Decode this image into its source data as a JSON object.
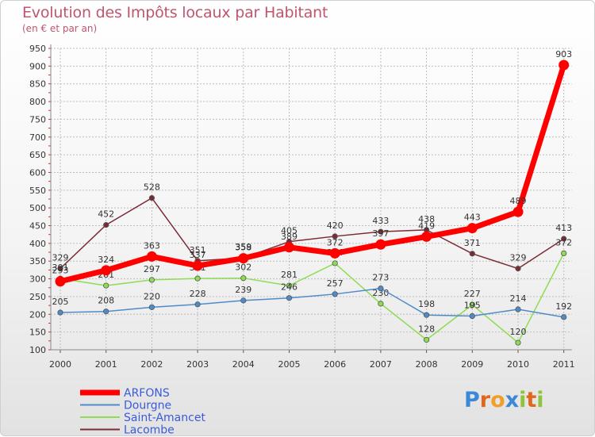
{
  "title": "Evolution des Impôts locaux par Habitant",
  "subtitle": "(en € et par an)",
  "logo": "Proxiti",
  "colors": {
    "ARFONS": "#ff0000",
    "Dourgne": "#4f8bc9",
    "Saint-Amancet": "#8ddc52",
    "Lacombe": "#7a2b36",
    "title": "#c0556f",
    "grid": "#bdbdbd"
  },
  "chart_data": {
    "type": "line",
    "title": "Evolution des Impôts locaux par Habitant",
    "subtitle": "(en € et par an)",
    "xlabel": "",
    "ylabel": "",
    "ylim": [
      100,
      950
    ],
    "yticks": [
      100,
      150,
      200,
      250,
      300,
      350,
      400,
      450,
      500,
      550,
      600,
      650,
      700,
      750,
      800,
      850,
      900,
      950
    ],
    "categories": [
      "2000",
      "2001",
      "2002",
      "2003",
      "2004",
      "2005",
      "2006",
      "2007",
      "2008",
      "2009",
      "2010",
      "2011"
    ],
    "grid": true,
    "legend_position": "bottom-left",
    "series": [
      {
        "name": "ARFONS",
        "values": [
          293,
          324,
          363,
          337,
          358,
          389,
          372,
          397,
          419,
          443,
          489,
          903
        ]
      },
      {
        "name": "Dourgne",
        "values": [
          205,
          208,
          220,
          228,
          239,
          246,
          257,
          273,
          198,
          195,
          214,
          192
        ]
      },
      {
        "name": "Saint-Amancet",
        "values": [
          301,
          281,
          297,
          301,
          302,
          281,
          344,
          230,
          128,
          227,
          120,
          372
        ]
      },
      {
        "name": "Lacombe",
        "values": [
          329,
          452,
          528,
          351,
          359,
          405,
          420,
          433,
          438,
          371,
          329,
          413
        ]
      }
    ]
  }
}
